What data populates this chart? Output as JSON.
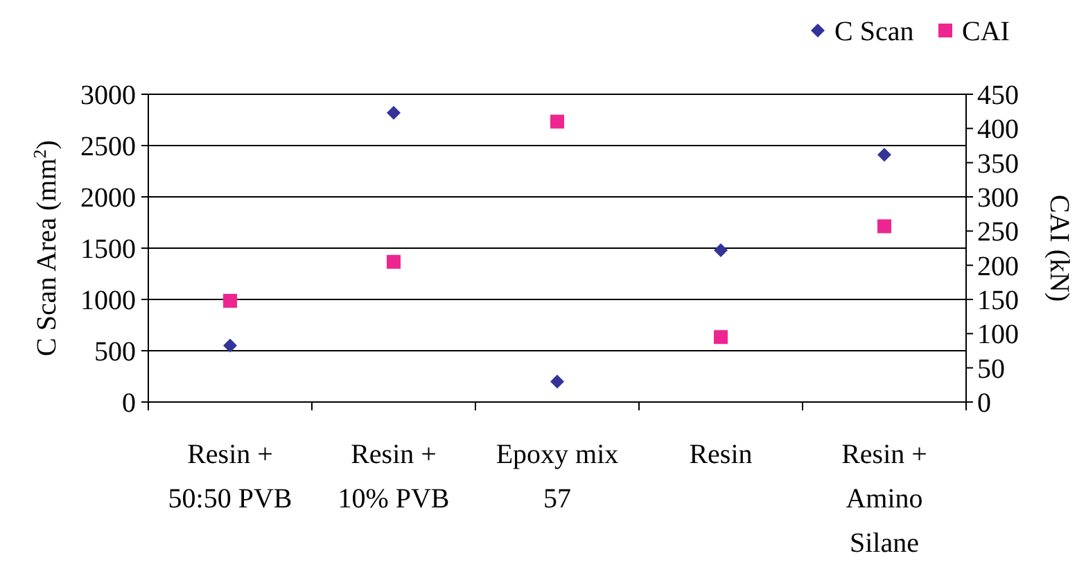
{
  "chart_data": {
    "type": "scatter",
    "xlabel": null,
    "ylabel": "C Scan Area (mm$^{2}$)",
    "y2label": "CAI (kN)",
    "categories": [
      "Resin + 50:50 PVB",
      "Resin + 10% PVB",
      "Epoxy mix 57",
      "Resin",
      "Resin + Amino Silane"
    ],
    "series": [
      {
        "name": "C Scan",
        "color": "#333399",
        "marker": "diamond",
        "values": [
          550,
          2820,
          200,
          1480,
          2410
        ]
      },
      {
        "name": "CAI",
        "color": "#ee2590",
        "marker": "square",
        "axis": "y2",
        "values": [
          148,
          205,
          410,
          95,
          257
        ]
      }
    ],
    "ylim": [
      0,
      3000
    ],
    "yticks": [
      0,
      500,
      1000,
      1500,
      2000,
      2500,
      3000
    ],
    "y2lim": [
      0,
      450
    ],
    "y2ticks": [
      0,
      50,
      100,
      150,
      200,
      250,
      300,
      350,
      400,
      450
    ],
    "grid": "y",
    "legend": "top right"
  }
}
